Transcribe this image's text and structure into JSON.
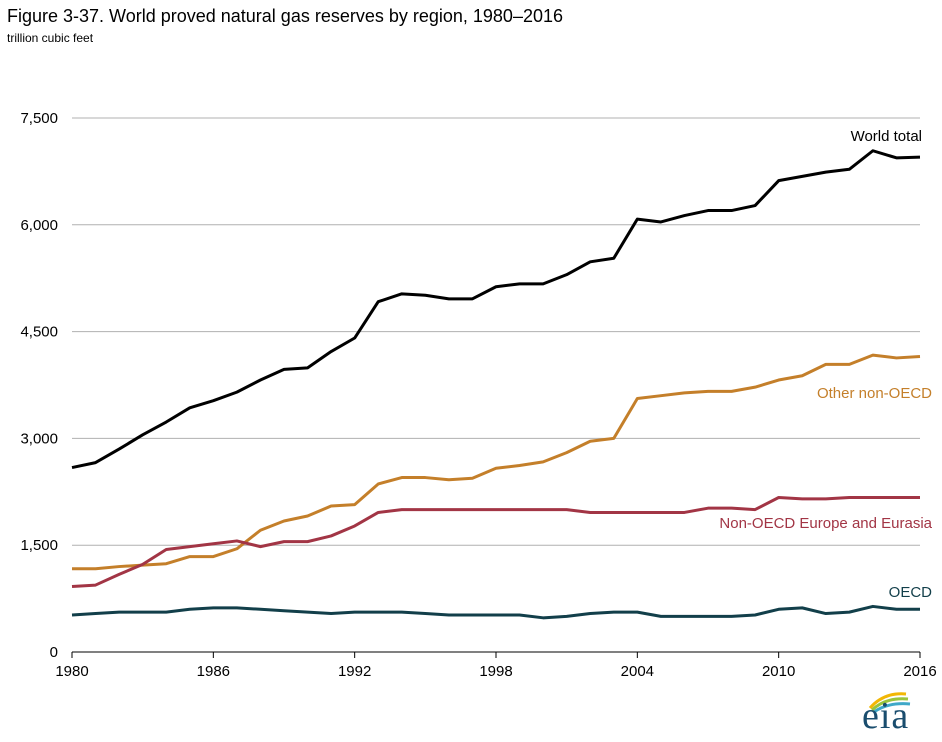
{
  "title": "Figure 3-37. World proved natural gas reserves by region, 1980–2016",
  "subtitle": "trillion cubic feet",
  "logo_text": "eia",
  "chart_data": {
    "type": "line",
    "title": "Figure 3-37. World proved natural gas reserves by region, 1980–2016",
    "ylabel": "trillion cubic feet",
    "xlabel": "",
    "xlim": [
      1980,
      2016
    ],
    "ylim": [
      0,
      7500
    ],
    "grid": true,
    "x_ticks": [
      1980,
      1986,
      1992,
      1998,
      2004,
      2010,
      2016
    ],
    "x_tick_labels": [
      "1980",
      "1986",
      "1992",
      "1998",
      "2004",
      "2010",
      "2016"
    ],
    "y_ticks": [
      0,
      1500,
      3000,
      4500,
      6000,
      7500
    ],
    "y_tick_labels": [
      "0",
      "1,500",
      "3,000",
      "4,500",
      "6,000",
      "7,500"
    ],
    "x": [
      1980,
      1981,
      1982,
      1983,
      1984,
      1985,
      1986,
      1987,
      1988,
      1989,
      1990,
      1991,
      1992,
      1993,
      1994,
      1995,
      1996,
      1997,
      1998,
      1999,
      2000,
      2001,
      2002,
      2003,
      2004,
      2005,
      2006,
      2007,
      2008,
      2009,
      2010,
      2011,
      2012,
      2013,
      2014,
      2015,
      2016
    ],
    "series": [
      {
        "name": "World total",
        "color": "#000000",
        "values": [
          2590,
          2660,
          2850,
          3050,
          3230,
          3430,
          3530,
          3650,
          3820,
          3970,
          3990,
          4220,
          4410,
          4920,
          5030,
          5010,
          4960,
          4960,
          5130,
          5170,
          5170,
          5300,
          5480,
          5530,
          6080,
          6040,
          6130,
          6200,
          6200,
          6270,
          6620,
          6680,
          6740,
          6780,
          7040,
          6940,
          6950
        ]
      },
      {
        "name": "Other non-OECD",
        "color": "#c47f2a",
        "values": [
          1170,
          1170,
          1200,
          1220,
          1240,
          1340,
          1340,
          1450,
          1710,
          1840,
          1910,
          2050,
          2070,
          2360,
          2450,
          2450,
          2420,
          2440,
          2580,
          2620,
          2670,
          2800,
          2960,
          3000,
          3560,
          3600,
          3640,
          3660,
          3660,
          3720,
          3820,
          3880,
          4040,
          4040,
          4170,
          4130,
          4150
        ]
      },
      {
        "name": "Non-OECD Europe and Eurasia",
        "color": "#a23545",
        "values": [
          920,
          940,
          1090,
          1230,
          1440,
          1480,
          1520,
          1560,
          1480,
          1550,
          1550,
          1630,
          1770,
          1960,
          2000,
          2000,
          2000,
          2000,
          2000,
          2000,
          2000,
          2000,
          1960,
          1960,
          1960,
          1960,
          1960,
          2020,
          2020,
          2000,
          2170,
          2150,
          2150,
          2170,
          2170,
          2170,
          2170
        ]
      },
      {
        "name": "OECD",
        "color": "#123f4a",
        "values": [
          520,
          540,
          560,
          560,
          560,
          600,
          620,
          620,
          600,
          580,
          560,
          540,
          560,
          560,
          560,
          540,
          520,
          520,
          520,
          520,
          480,
          500,
          540,
          560,
          560,
          500,
          500,
          500,
          500,
          520,
          600,
          620,
          540,
          560,
          640,
          600,
          600
        ]
      }
    ]
  }
}
